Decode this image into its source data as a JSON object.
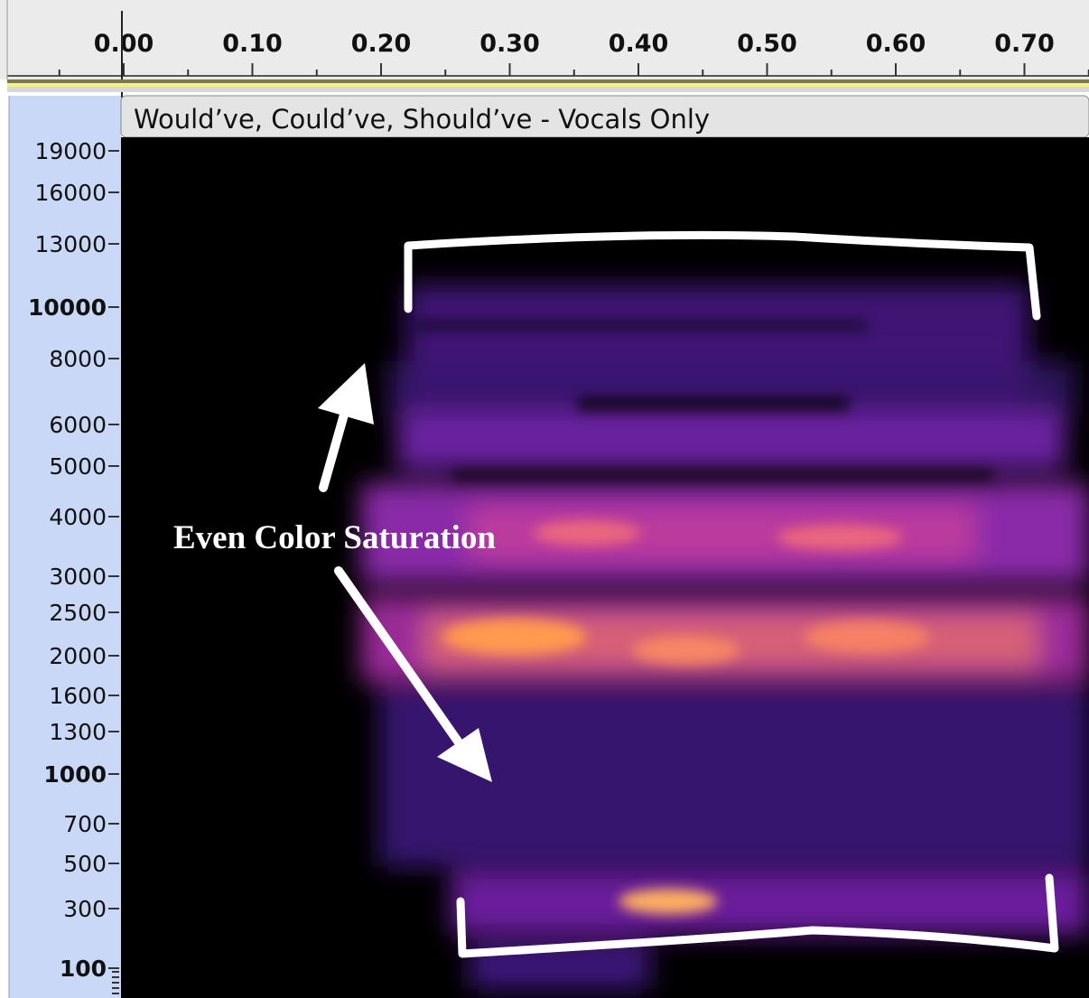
{
  "timeline": {
    "ticks": [
      "0.00",
      "0.10",
      "0.20",
      "0.30",
      "0.40",
      "0.50",
      "0.60",
      "0.70"
    ]
  },
  "track": {
    "title": "Would’ve, Could’ve, Should’ve - Vocals Only"
  },
  "frequency_axis": {
    "labels": [
      "19000",
      "16000",
      "13000",
      "10000",
      "8000",
      "6000",
      "5000",
      "4000",
      "3000",
      "2500",
      "2000",
      "1600",
      "1300",
      "1000",
      "700",
      "500",
      "300",
      "100"
    ]
  },
  "annotation": "Even Color Saturation"
}
